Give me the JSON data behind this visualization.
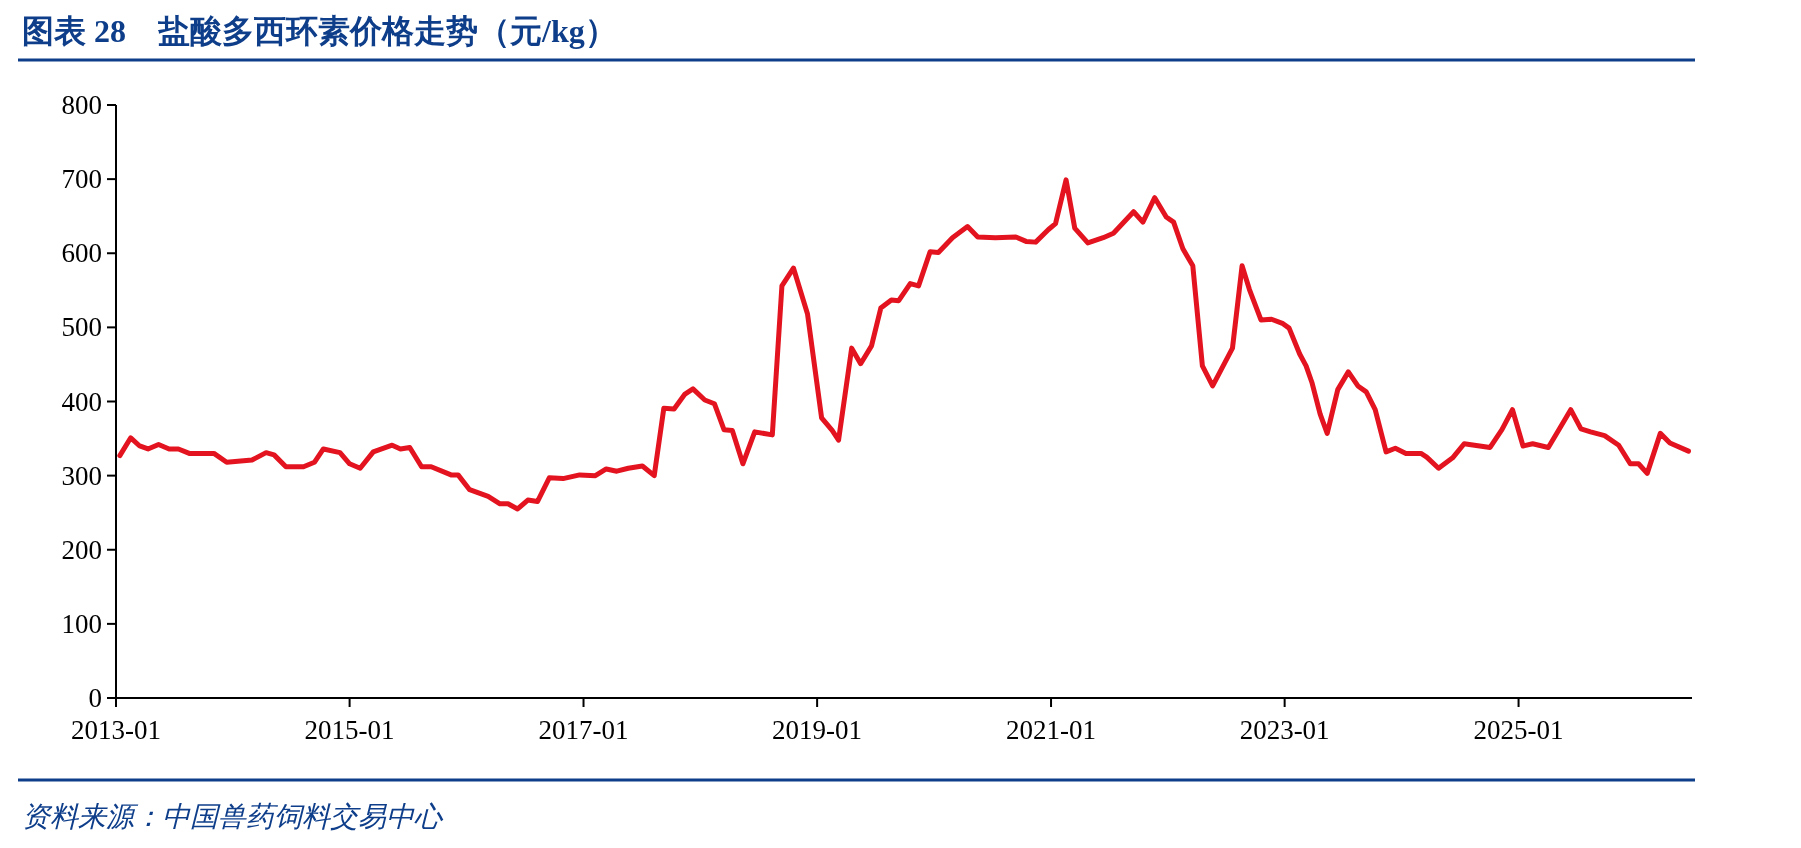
{
  "chart_data": {
    "type": "line",
    "title": "图表 28　盐酸多西环素价格走势（元/kg）",
    "annotations": [
      "资料来源：中国兽药饲料交易中心"
    ],
    "x": [
      "2013-01-13",
      "2013-02-16",
      "2013-03-16",
      "2013-04-11",
      "2013-05-14",
      "2013-06-16",
      "2013-07-15",
      "2013-08-18",
      "2013-11-03",
      "2013-12-13",
      "2014-03-02",
      "2014-04-15",
      "2014-05-10",
      "2014-06-16",
      "2014-08-10",
      "2014-09-13",
      "2014-10-11",
      "2014-12-02",
      "2015-01-01",
      "2015-02-03",
      "2015-03-16",
      "2015-05-14",
      "2015-06-09",
      "2015-07-08",
      "2015-08-14",
      "2015-09-13",
      "2015-11-14",
      "2015-12-06",
      "2016-01-11",
      "2016-03-09",
      "2016-04-15",
      "2016-05-10",
      "2016-06-09",
      "2016-07-11",
      "2016-08-10",
      "2016-09-16",
      "2016-10-29",
      "2016-12-20",
      "2017-02-07",
      "2017-03-13",
      "2017-04-15",
      "2017-05-21",
      "2017-07-04",
      "2017-08-10",
      "2017-09-09",
      "2017-10-11",
      "2017-11-14",
      "2017-12-09",
      "2018-01-15",
      "2018-02-14",
      "2018-03-16",
      "2018-04-11",
      "2018-05-14",
      "2018-06-20",
      "2018-08-14",
      "2018-09-13",
      "2018-10-19",
      "2018-12-02",
      "2019-01-15",
      "2019-02-17",
      "2019-03-09",
      "2019-04-19",
      "2019-05-17",
      "2019-06-20",
      "2019-07-19",
      "2019-08-21",
      "2019-09-13",
      "2019-10-19",
      "2019-11-14",
      "2019-12-20",
      "2020-01-15",
      "2020-02-28",
      "2020-04-15",
      "2020-05-17",
      "2020-07-11",
      "2020-09-13",
      "2020-10-15",
      "2020-11-14",
      "2020-12-24",
      "2021-01-15",
      "2021-02-17",
      "2021-03-16",
      "2021-04-26",
      "2021-06-13",
      "2021-07-15",
      "2021-09-16",
      "2021-10-15",
      "2021-11-21",
      "2021-12-27",
      "2022-01-19",
      "2022-02-17",
      "2022-03-20",
      "2022-04-19",
      "2022-05-21",
      "2022-07-22",
      "2022-08-21",
      "2022-09-13",
      "2022-10-19",
      "2022-11-21",
      "2022-12-27",
      "2023-01-15",
      "2023-02-17",
      "2023-03-09",
      "2023-03-27",
      "2023-04-22",
      "2023-05-14",
      "2023-06-16",
      "2023-07-19",
      "2023-08-18",
      "2023-09-13",
      "2023-10-11",
      "2023-11-14",
      "2023-12-13",
      "2024-01-15",
      "2024-03-02",
      "2024-03-20",
      "2024-04-26",
      "2024-06-09",
      "2024-07-15",
      "2024-10-04",
      "2024-11-10",
      "2024-12-13",
      "2025-01-15",
      "2025-02-14",
      "2025-04-04",
      "2025-05-07",
      "2025-06-13",
      "2025-07-15",
      "2025-08-14",
      "2025-09-27",
      "2025-11-10",
      "2025-12-16",
      "2026-01-11",
      "2026-02-07",
      "2026-03-20",
      "2026-04-19",
      "2026-06-16"
    ],
    "series": [
      {
        "color": "#e3141f",
        "values": [
          327,
          351,
          340,
          336,
          342,
          336,
          336,
          330,
          330,
          318,
          321,
          331,
          328,
          312,
          312,
          318,
          336,
          331,
          316,
          310,
          332,
          341,
          336,
          338,
          312,
          312,
          301,
          301,
          281,
          272,
          262,
          262,
          255,
          267,
          265,
          297,
          296,
          301,
          300,
          309,
          306,
          310,
          313,
          300,
          391,
          390,
          410,
          417,
          402,
          397,
          362,
          361,
          316,
          359,
          355,
          556,
          580,
          518,
          378,
          361,
          348,
          472,
          451,
          475,
          526,
          537,
          536,
          559,
          556,
          602,
          601,
          621,
          636,
          622,
          621,
          622,
          616,
          615,
          632,
          640,
          699,
          634,
          614,
          621,
          627,
          656,
          642,
          675,
          649,
          642,
          606,
          583,
          448,
          421,
          472,
          583,
          551,
          510,
          511,
          505,
          499,
          464,
          448,
          426,
          383,
          357,
          416,
          440,
          421,
          413,
          389,
          332,
          337,
          330,
          330,
          325,
          310,
          324,
          343,
          338,
          362,
          389,
          340,
          343,
          338,
          362,
          389,
          363,
          359,
          354,
          341,
          316,
          316,
          303,
          357,
          344,
          333
        ]
      }
    ],
    "xlim": [
      "2013-01-01",
      "2026-06-27"
    ],
    "xticks": [
      "2013-01",
      "2015-01",
      "2017-01",
      "2019-01",
      "2021-01",
      "2023-01",
      "2025-01"
    ],
    "ylim": [
      0,
      800
    ],
    "yticks": [
      0,
      100,
      200,
      300,
      400,
      500,
      600,
      700,
      800
    ],
    "grid": false,
    "line_style": "solid",
    "marker": "none"
  }
}
